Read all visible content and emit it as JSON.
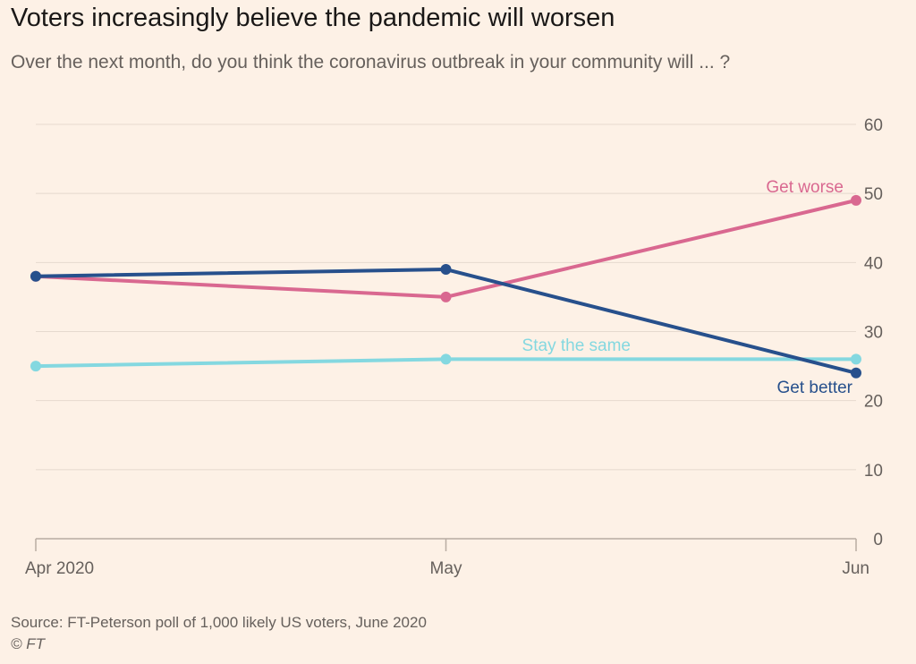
{
  "header": {
    "title": "Voters increasingly believe the pandemic will worsen",
    "subtitle": "Over the next month, do you think the coronavirus outbreak in your community will ... ?"
  },
  "footer": {
    "source": "Source: FT-Peterson poll of 1,000 likely US voters, June 2020",
    "credit": "© FT"
  },
  "colors": {
    "background": "#fdf1e6",
    "gridline": "#e6d9ce",
    "axis": "#b8aca2"
  },
  "chart_data": {
    "type": "line",
    "title": "Voters increasingly believe the pandemic will worsen",
    "subtitle": "Over the next month, do you think the coronavirus outbreak in your community will ... ?",
    "x": [
      "Apr 2020",
      "May",
      "Jun"
    ],
    "ylim": [
      0,
      60
    ],
    "yticks": [
      "0",
      "10",
      "20",
      "30",
      "40",
      "50",
      "60"
    ],
    "y_axis_side": "right",
    "grid": true,
    "legend": "inline labels",
    "series": [
      {
        "name": "Get worse",
        "values": [
          38,
          35,
          49
        ],
        "color": "#d96890"
      },
      {
        "name": "Stay the same",
        "values": [
          25,
          26,
          26
        ],
        "color": "#84d8e0"
      },
      {
        "name": "Get better",
        "values": [
          38,
          39,
          24
        ],
        "color": "#27508c"
      }
    ]
  }
}
